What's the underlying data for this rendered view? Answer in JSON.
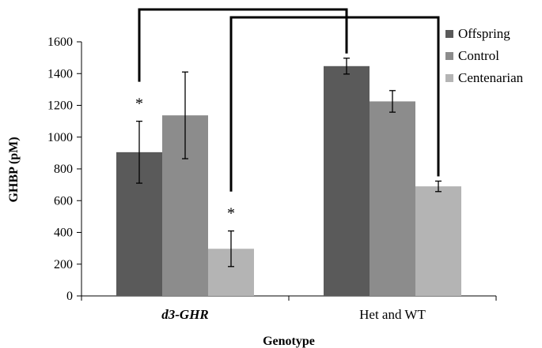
{
  "chart_data": {
    "type": "bar",
    "xlabel": "Genotype",
    "ylabel": "GHBP (pM)",
    "ylim": [
      0,
      1600
    ],
    "yticks": [
      0,
      200,
      400,
      600,
      800,
      1000,
      1200,
      1400,
      1600
    ],
    "categories": [
      "d3-GHR",
      "Het and WT"
    ],
    "categories_italic": [
      true,
      false
    ],
    "series": [
      {
        "name": "Offspring",
        "color": "#5a5a5a",
        "values": [
          905,
          1447
        ],
        "errors": [
          195,
          50
        ]
      },
      {
        "name": "Control",
        "color": "#8c8c8c",
        "values": [
          1137,
          1225
        ],
        "errors": [
          273,
          68
        ]
      },
      {
        "name": "Centenarian",
        "color": "#b4b4b4",
        "values": [
          297,
          690
        ],
        "errors": [
          112,
          33
        ]
      }
    ],
    "annotations": [
      {
        "text": "*",
        "category": 0,
        "series": 0
      },
      {
        "text": "*",
        "category": 0,
        "series": 2
      }
    ],
    "significance_brackets": [
      {
        "from": {
          "category": 0,
          "series": 0
        },
        "to": {
          "category": 1,
          "series": 0
        }
      },
      {
        "from": {
          "category": 0,
          "series": 2
        },
        "to": {
          "category": 1,
          "series": 2
        }
      }
    ],
    "legend": {
      "position": "top-right"
    },
    "grid": false
  }
}
